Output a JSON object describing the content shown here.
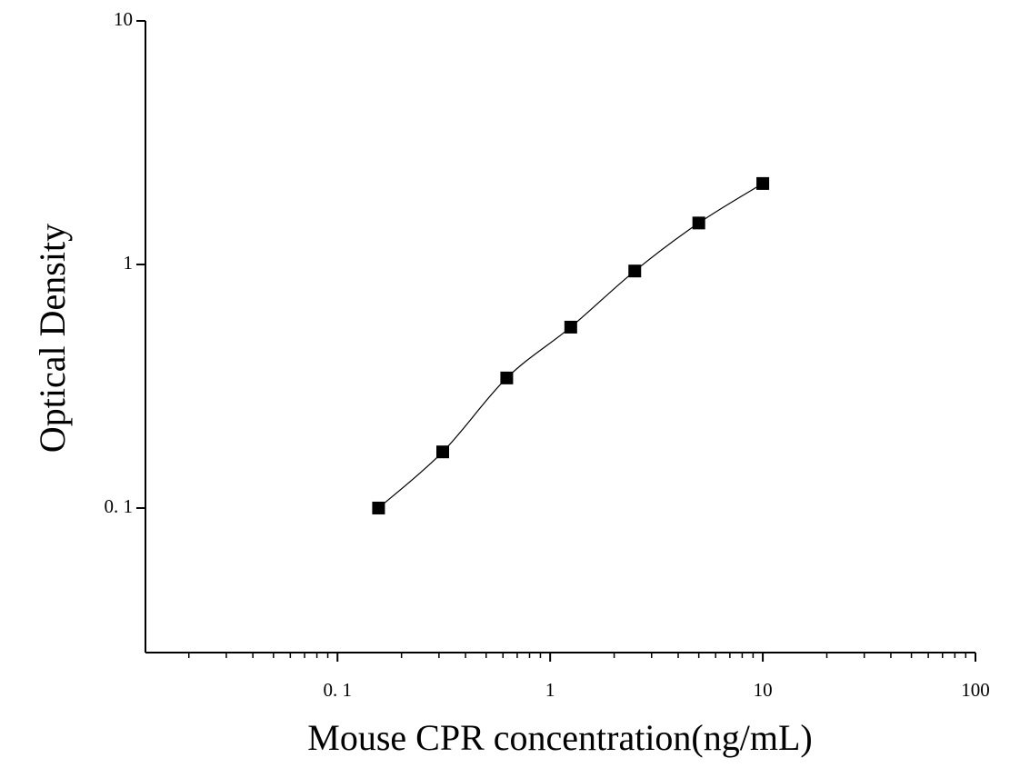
{
  "chart_data": {
    "type": "scatter",
    "x_label": "Mouse CPR concentration(ng/mL)",
    "y_label": "Optical Density",
    "x_scale": "log",
    "y_scale": "log",
    "xlim": [
      0.0125,
      100
    ],
    "ylim": [
      0.0255,
      10
    ],
    "xticks": [
      {
        "value": 0.1,
        "label": "0. 1"
      },
      1,
      10,
      100
    ],
    "yticks": [
      {
        "value": 0.1,
        "label": "0. 1"
      },
      1,
      10
    ],
    "series": [
      {
        "color": "#000000",
        "x": [
          0.156,
          0.3125,
          0.625,
          1.25,
          2.5,
          5,
          10
        ],
        "values": [
          0.1,
          0.17,
          0.342,
          0.553,
          0.94,
          1.48,
          2.15
        ]
      }
    ]
  }
}
